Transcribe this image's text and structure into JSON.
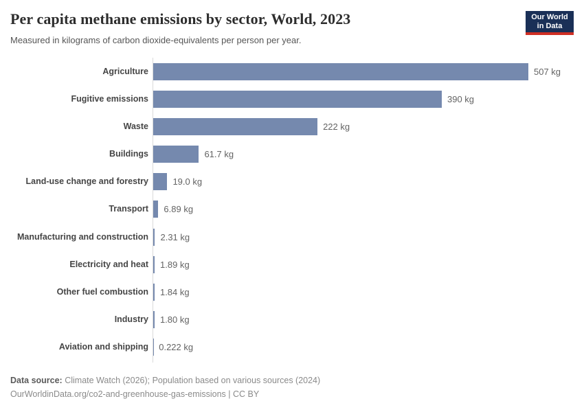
{
  "header": {
    "title": "Per capita methane emissions by sector, World, 2023",
    "subtitle": "Measured in kilograms of carbon dioxide-equivalents per person per year.",
    "logo": {
      "line1": "Our World",
      "line2": "in Data"
    }
  },
  "chart_data": {
    "type": "bar",
    "orientation": "horizontal",
    "title": "Per capita methane emissions by sector, World, 2023",
    "subtitle": "Measured in kilograms of carbon dioxide-equivalents per person per year.",
    "unit": "kg",
    "xlim": [
      0,
      507
    ],
    "grid": false,
    "legend": "none",
    "categories": [
      "Agriculture",
      "Fugitive emissions",
      "Waste",
      "Buildings",
      "Land-use change and forestry",
      "Transport",
      "Manufacturing and construction",
      "Electricity and heat",
      "Other fuel combustion",
      "Industry",
      "Aviation and shipping"
    ],
    "values": [
      507,
      390,
      222,
      61.7,
      19.0,
      6.89,
      2.31,
      1.89,
      1.84,
      1.8,
      0.222
    ],
    "value_labels": [
      "507 kg",
      "390 kg",
      "222 kg",
      "61.7 kg",
      "19.0 kg",
      "6.89 kg",
      "2.31 kg",
      "1.89 kg",
      "1.84 kg",
      "1.80 kg",
      "0.222 kg"
    ]
  },
  "footer": {
    "datasource_label": "Data source:",
    "datasource_text": "Climate Watch (2026); Population based on various sources (2024)",
    "url_line": "OurWorldinData.org/co2-and-greenhouse-gas-emissions | CC BY"
  },
  "colors": {
    "bar": "#7589ae",
    "axis_line": "#d9d9d9",
    "logo_background": "#1a3057",
    "logo_red_stripe": "#cf2f24"
  }
}
